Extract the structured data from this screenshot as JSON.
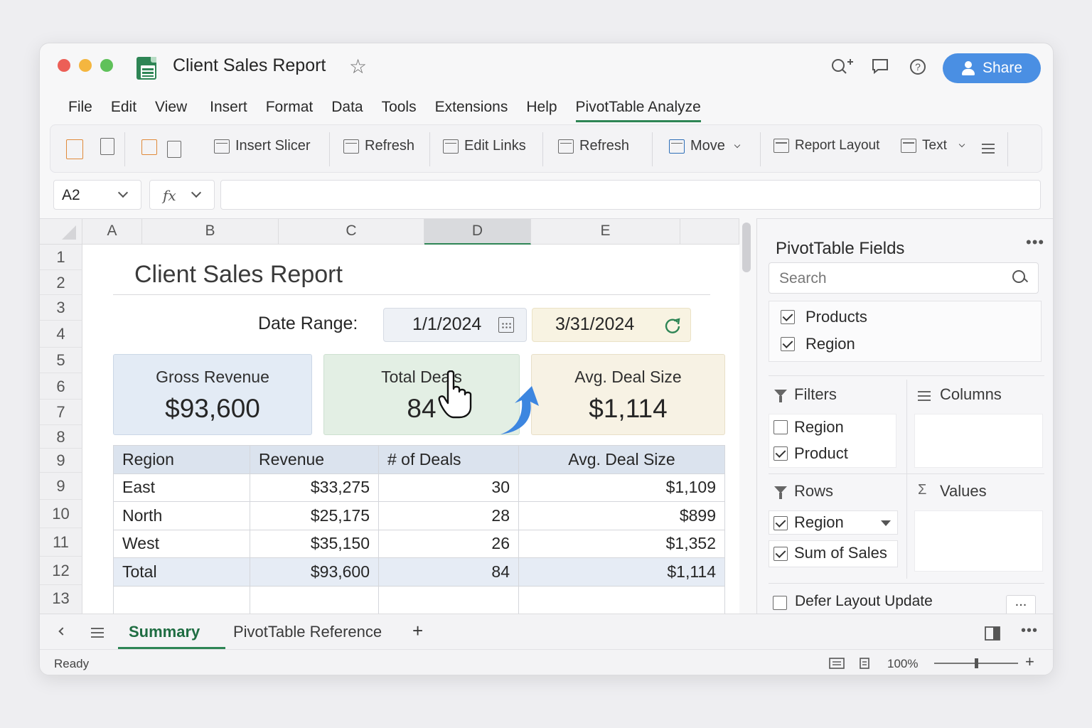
{
  "window": {
    "title": "Client Sales Report",
    "share_label": "Share"
  },
  "menu": [
    "File",
    "Edit",
    "View",
    "Insert",
    "Format",
    "Data",
    "Tools",
    "Extensions",
    "Help",
    "PivotTable Analyze"
  ],
  "ribbon": {
    "insert_slicer": "Insert Slicer",
    "refresh_1": "Refresh",
    "edit_links": "Edit Links",
    "refresh_2": "Refresh",
    "move": "Move",
    "report_layout": "Report Layout",
    "text": "Text"
  },
  "formula_bar": {
    "cell_ref": "A2",
    "fx": "fx",
    "value": ""
  },
  "grid": {
    "columns": [
      "A",
      "B",
      "C",
      "D",
      "E"
    ],
    "rows": [
      "1",
      "2",
      "3",
      "4",
      "5",
      "6",
      "7",
      "8",
      "9",
      "9",
      "10",
      "11",
      "12",
      "13"
    ]
  },
  "report": {
    "title": "Client Sales Report",
    "date_range_label": "Date Range:",
    "start_date": "1/1/2024",
    "end_date": "3/31/2024",
    "kpis": [
      {
        "label": "Gross Revenue",
        "value": "$93,600",
        "color": "#e3ebf5"
      },
      {
        "label": "Total Deals",
        "value": "84",
        "color": "#e3efe4"
      },
      {
        "label": "Avg. Deal Size",
        "value": "$1,114",
        "color": "#f7f2e4"
      }
    ],
    "table": {
      "headers": [
        "Region",
        "Revenue",
        "# of Deals",
        "Avg. Deal Size"
      ],
      "rows": [
        [
          "East",
          "$33,275",
          "30",
          "$1,109"
        ],
        [
          "North",
          "$25,175",
          "28",
          "$899"
        ],
        [
          "West",
          "$35,150",
          "26",
          "$1,352"
        ],
        [
          "Total",
          "$93,600",
          "84",
          "$1,114"
        ]
      ]
    }
  },
  "pivot_panel": {
    "title": "PivotTable Fields",
    "search_placeholder": "Search",
    "fields": [
      {
        "label": "Products",
        "checked": true
      },
      {
        "label": "Region",
        "checked": true
      }
    ],
    "filters_label": "Filters",
    "columns_label": "Columns",
    "rows_label": "Rows",
    "values_label": "Values",
    "filter_items": [
      {
        "label": "Region",
        "checked": false
      },
      {
        "label": "Product",
        "checked": true
      }
    ],
    "row_items": [
      {
        "label": "Region",
        "checked": true
      },
      {
        "label": "Sum of Sales",
        "checked": true
      }
    ],
    "defer_label": "Defer Layout Update",
    "more_label": "..."
  },
  "sheet_tabs": {
    "active": "Summary",
    "other": "PivotTable Reference",
    "add": "+"
  },
  "status": {
    "ready": "Ready",
    "zoom": "100%"
  },
  "colors": {
    "accent": "#2e8555",
    "share": "#4a8fe3",
    "header_blue": "#dbe3ee"
  }
}
